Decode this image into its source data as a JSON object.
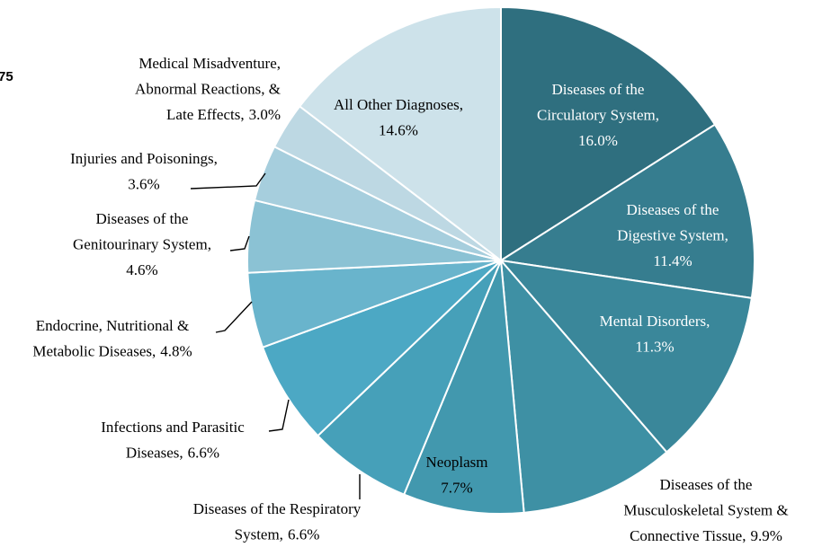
{
  "annotations": [
    "75"
  ],
  "chart_data": {
    "type": "pie",
    "categories": [
      [
        "Diseases of the",
        "Circulatory System,"
      ],
      [
        "Diseases of the",
        "Digestive System,"
      ],
      [
        "Mental Disorders,"
      ],
      [
        "Diseases of the",
        "Musculoskeletal System &",
        "Connective Tissue,"
      ],
      [
        "Neoplasm"
      ],
      [
        "Diseases of the Respiratory",
        "System,"
      ],
      [
        "Infections and Parasitic",
        "Diseases,"
      ],
      [
        "Endocrine, Nutritional &",
        "Metabolic Diseases,"
      ],
      [
        "Diseases of the",
        "Genitourinary System,"
      ],
      [
        "Injuries and Poisonings,"
      ],
      [
        "Medical Misadventure,",
        "Abnormal Reactions, &",
        "Late Effects,"
      ],
      [
        "All Other Diagnoses,"
      ]
    ],
    "values": [
      16.0,
      11.4,
      11.3,
      9.9,
      7.7,
      6.6,
      6.6,
      4.8,
      4.6,
      3.6,
      3.0,
      14.6
    ],
    "value_labels": [
      "16.0%",
      "11.4%",
      "11.3%",
      "9.9%",
      "7.7%",
      "6.6%",
      "6.6%",
      "4.8%",
      "4.6%",
      "3.6%",
      "3.0%",
      "14.6%"
    ],
    "colors": [
      "#2f6f7f",
      "#367d8f",
      "#3a879a",
      "#3e90a4",
      "#4298ae",
      "#46a0b9",
      "#4ca8c4",
      "#69b4cc",
      "#8bc2d4",
      "#a6cedd",
      "#bdd8e3",
      "#cde2ea"
    ],
    "start_angle": 0,
    "direction": "clockwise"
  }
}
